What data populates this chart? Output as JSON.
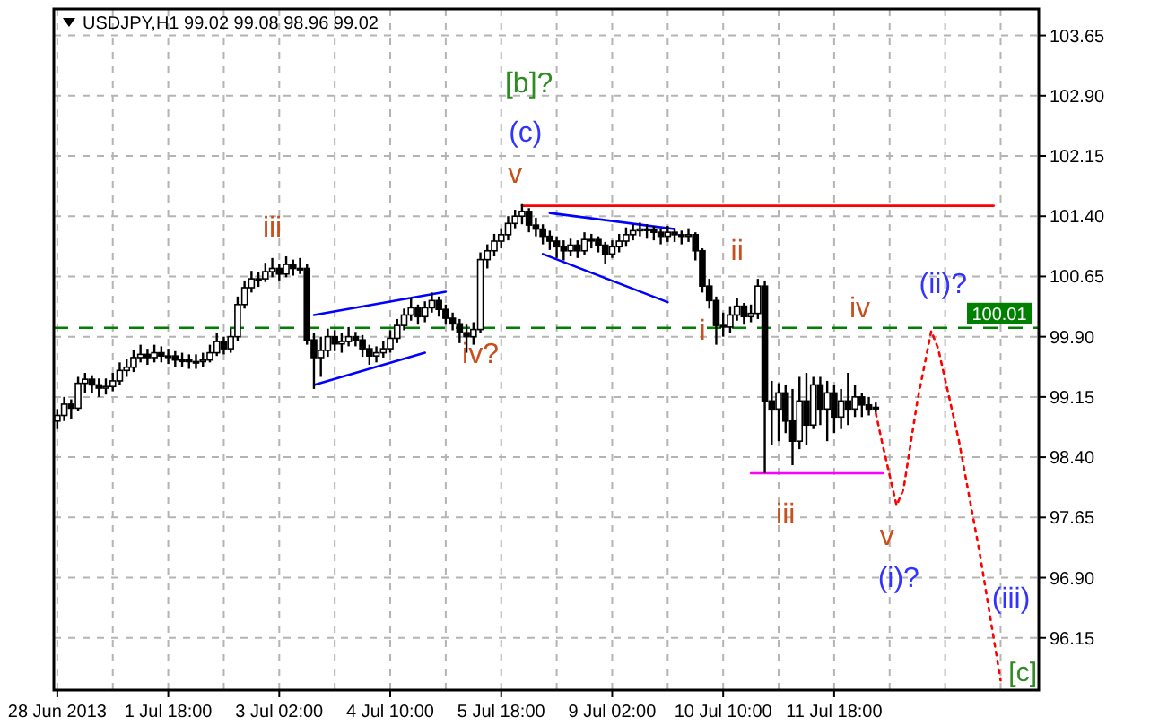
{
  "chart_data": {
    "type": "candlestick",
    "title": "USDJPY,H1  99.02 99.08 98.96 99.02",
    "categories": [
      "28 Jun 2013",
      null,
      null,
      null,
      null,
      null,
      null,
      null,
      null,
      null,
      null,
      null,
      null,
      null,
      null,
      null,
      "1 Jul 18:00",
      null,
      null,
      null,
      null,
      null,
      null,
      null,
      null,
      null,
      null,
      null,
      null,
      null,
      null,
      null,
      "3 Jul 02:00",
      null,
      null,
      null,
      null,
      null,
      null,
      null,
      null,
      null,
      null,
      null,
      null,
      null,
      null,
      null,
      "4 Jul 10:00",
      null,
      null,
      null,
      null,
      null,
      null,
      null,
      null,
      null,
      null,
      null,
      null,
      null,
      null,
      null,
      "5 Jul 18:00",
      null,
      null,
      null,
      null,
      null,
      null,
      null,
      null,
      null,
      null,
      null,
      null,
      null,
      null,
      null,
      "9 Jul 02:00",
      null,
      null,
      null,
      null,
      null,
      null,
      null,
      null,
      null,
      null,
      null,
      null,
      null,
      null,
      null,
      "10 Jul 10:00",
      null,
      null,
      null,
      null,
      null,
      null,
      null,
      null,
      null,
      null,
      null,
      null,
      null,
      null,
      null,
      "11 Jul 18:00",
      null,
      null,
      null,
      null,
      null,
      null,
      null,
      null,
      null,
      null,
      null,
      null,
      null,
      null,
      null,
      null,
      null,
      null,
      null,
      null,
      null,
      null,
      null,
      null,
      null,
      null,
      null,
      null,
      null
    ],
    "ohlc": [
      [
        98.85,
        99.0,
        98.75,
        98.92
      ],
      [
        98.92,
        99.15,
        98.85,
        99.06
      ],
      [
        99.06,
        99.12,
        98.88,
        99.01
      ],
      [
        99.01,
        99.4,
        98.98,
        99.32
      ],
      [
        99.32,
        99.45,
        99.2,
        99.37
      ],
      [
        99.37,
        99.42,
        99.2,
        99.3
      ],
      [
        99.3,
        99.38,
        99.15,
        99.26
      ],
      [
        99.26,
        99.38,
        99.18,
        99.28
      ],
      [
        99.28,
        99.45,
        99.22,
        99.35
      ],
      [
        99.35,
        99.58,
        99.3,
        99.48
      ],
      [
        99.48,
        99.62,
        99.4,
        99.52
      ],
      [
        99.52,
        99.74,
        99.46,
        99.64
      ],
      [
        99.64,
        99.8,
        99.58,
        99.68
      ],
      [
        99.68,
        99.75,
        99.55,
        99.64
      ],
      [
        99.64,
        99.8,
        99.58,
        99.7
      ],
      [
        99.7,
        99.78,
        99.58,
        99.66
      ],
      [
        99.66,
        99.75,
        99.56,
        99.66
      ],
      [
        99.66,
        99.72,
        99.52,
        99.61
      ],
      [
        99.61,
        99.7,
        99.52,
        99.61
      ],
      [
        99.61,
        99.68,
        99.5,
        99.59
      ],
      [
        99.59,
        99.68,
        99.5,
        99.59
      ],
      [
        99.59,
        99.7,
        99.52,
        99.61
      ],
      [
        99.61,
        99.8,
        99.58,
        99.7
      ],
      [
        99.7,
        99.95,
        99.66,
        99.84
      ],
      [
        99.84,
        99.9,
        99.68,
        99.75
      ],
      [
        99.75,
        100.0,
        99.7,
        99.9
      ],
      [
        99.9,
        100.4,
        99.85,
        100.3
      ],
      [
        100.3,
        100.6,
        100.25,
        100.51
      ],
      [
        100.51,
        100.72,
        100.45,
        100.62
      ],
      [
        100.62,
        100.7,
        100.52,
        100.62
      ],
      [
        100.62,
        100.82,
        100.58,
        100.71
      ],
      [
        100.71,
        100.88,
        100.64,
        100.75
      ],
      [
        100.75,
        100.8,
        100.6,
        100.68
      ],
      [
        100.68,
        100.9,
        100.64,
        100.8
      ],
      [
        100.8,
        100.86,
        100.66,
        100.75
      ],
      [
        100.75,
        100.88,
        100.68,
        100.75
      ],
      [
        100.75,
        100.8,
        99.8,
        99.86
      ],
      [
        99.86,
        99.95,
        99.25,
        99.64
      ],
      [
        99.64,
        99.9,
        99.4,
        99.73
      ],
      [
        99.73,
        100.0,
        99.65,
        99.9
      ],
      [
        99.9,
        99.98,
        99.72,
        99.81
      ],
      [
        99.81,
        99.95,
        99.7,
        99.84
      ],
      [
        99.84,
        100.02,
        99.78,
        99.9
      ],
      [
        99.9,
        99.96,
        99.78,
        99.86
      ],
      [
        99.86,
        99.92,
        99.65,
        99.75
      ],
      [
        99.75,
        99.8,
        99.55,
        99.66
      ],
      [
        99.66,
        99.78,
        99.58,
        99.7
      ],
      [
        99.7,
        99.85,
        99.64,
        99.75
      ],
      [
        99.75,
        99.98,
        99.7,
        99.88
      ],
      [
        99.88,
        100.12,
        99.82,
        100.04
      ],
      [
        100.04,
        100.25,
        99.98,
        100.17
      ],
      [
        100.17,
        100.38,
        100.1,
        100.26
      ],
      [
        100.26,
        100.3,
        100.05,
        100.15
      ],
      [
        100.15,
        100.34,
        100.08,
        100.26
      ],
      [
        100.26,
        100.45,
        100.2,
        100.35
      ],
      [
        100.35,
        100.4,
        100.15,
        100.24
      ],
      [
        100.24,
        100.3,
        100.05,
        100.13
      ],
      [
        100.13,
        100.2,
        99.98,
        100.06
      ],
      [
        100.06,
        100.12,
        99.82,
        99.95
      ],
      [
        99.95,
        100.05,
        99.7,
        99.9
      ],
      [
        99.9,
        100.08,
        99.8,
        99.99
      ],
      [
        99.99,
        100.95,
        99.95,
        100.86
      ],
      [
        100.86,
        101.05,
        100.75,
        100.97
      ],
      [
        100.97,
        101.18,
        100.9,
        101.09
      ],
      [
        101.09,
        101.25,
        101.0,
        101.17
      ],
      [
        101.17,
        101.4,
        101.1,
        101.31
      ],
      [
        101.31,
        101.48,
        101.25,
        101.4
      ],
      [
        101.4,
        101.55,
        101.3,
        101.46
      ],
      [
        101.46,
        101.5,
        101.2,
        101.29
      ],
      [
        101.29,
        101.38,
        101.15,
        101.24
      ],
      [
        101.24,
        101.3,
        101.05,
        101.15
      ],
      [
        101.15,
        101.22,
        100.98,
        101.09
      ],
      [
        101.09,
        101.15,
        100.88,
        101.02
      ],
      [
        101.02,
        101.1,
        100.85,
        100.97
      ],
      [
        100.97,
        101.12,
        100.9,
        101.04
      ],
      [
        101.04,
        101.1,
        100.88,
        100.97
      ],
      [
        100.97,
        101.2,
        100.92,
        101.11
      ],
      [
        101.11,
        101.18,
        101.0,
        101.11
      ],
      [
        101.11,
        101.15,
        100.95,
        101.04
      ],
      [
        101.04,
        101.08,
        100.8,
        100.93
      ],
      [
        100.93,
        101.1,
        100.88,
        101.02
      ],
      [
        101.02,
        101.18,
        100.95,
        101.09
      ],
      [
        101.09,
        101.26,
        101.02,
        101.17
      ],
      [
        101.17,
        101.3,
        101.1,
        101.22
      ],
      [
        101.22,
        101.32,
        101.15,
        101.24
      ],
      [
        101.24,
        101.3,
        101.12,
        101.24
      ],
      [
        101.24,
        101.28,
        101.1,
        101.2
      ],
      [
        101.2,
        101.25,
        101.05,
        101.15
      ],
      [
        101.15,
        101.28,
        101.08,
        101.2
      ],
      [
        101.2,
        101.25,
        101.08,
        101.17
      ],
      [
        101.17,
        101.22,
        101.05,
        101.15
      ],
      [
        101.15,
        101.25,
        101.08,
        101.17
      ],
      [
        101.17,
        101.2,
        100.85,
        100.97
      ],
      [
        100.97,
        101.0,
        100.45,
        100.53
      ],
      [
        100.53,
        100.62,
        100.25,
        100.35
      ],
      [
        100.35,
        100.4,
        99.8,
        100.04
      ],
      [
        100.04,
        100.2,
        99.9,
        100.02
      ],
      [
        100.02,
        100.28,
        99.95,
        100.17
      ],
      [
        100.17,
        100.38,
        100.1,
        100.28
      ],
      [
        100.28,
        100.32,
        100.05,
        100.15
      ],
      [
        100.15,
        100.3,
        100.08,
        100.19
      ],
      [
        100.19,
        100.62,
        100.12,
        100.53
      ],
      [
        100.53,
        100.6,
        98.2,
        99.1
      ],
      [
        99.1,
        99.35,
        98.55,
        99.0
      ],
      [
        99.0,
        99.32,
        98.6,
        99.2
      ],
      [
        99.2,
        99.3,
        98.7,
        98.85
      ],
      [
        98.85,
        99.25,
        98.3,
        98.6
      ],
      [
        98.6,
        99.4,
        98.5,
        99.1
      ],
      [
        99.1,
        99.45,
        98.55,
        98.8
      ],
      [
        98.8,
        99.4,
        98.75,
        99.3
      ],
      [
        99.3,
        99.4,
        98.8,
        99.0
      ],
      [
        99.0,
        99.35,
        98.6,
        99.2
      ],
      [
        99.2,
        99.3,
        98.7,
        98.9
      ],
      [
        98.9,
        99.25,
        98.75,
        99.1
      ],
      [
        99.1,
        99.45,
        98.8,
        99.0
      ],
      [
        99.0,
        99.3,
        98.9,
        99.15
      ],
      [
        99.15,
        99.2,
        98.9,
        99.05
      ],
      [
        99.05,
        99.15,
        98.92,
        99.0
      ],
      [
        99.02,
        99.08,
        98.96,
        99.02
      ],
      null,
      null,
      null,
      null,
      null,
      null,
      null,
      null,
      null,
      null,
      null,
      null,
      null,
      null,
      null,
      null,
      null,
      null,
      null,
      null,
      null,
      null,
      null
    ],
    "series": [
      {
        "type": "line",
        "color": "#0000ff",
        "values": [
          null,
          null,
          null,
          null,
          null,
          null,
          null,
          null,
          null,
          null,
          null,
          null,
          null,
          null,
          null,
          null,
          null,
          null,
          null,
          null,
          null,
          null,
          null,
          null,
          null,
          null,
          null,
          null,
          null,
          null,
          null,
          null,
          null,
          null,
          null,
          null,
          null,
          99.3,
          null,
          null,
          null,
          null,
          null,
          null,
          null,
          null,
          null,
          null,
          null,
          null,
          null,
          null,
          null,
          99.7,
          null,
          null,
          null,
          null,
          null,
          null,
          null,
          null,
          null,
          null,
          null,
          null,
          null,
          null,
          null,
          null,
          null,
          null,
          null,
          null,
          null,
          null,
          null,
          null,
          null,
          null,
          null,
          null,
          null,
          null,
          null,
          null,
          null,
          null,
          null,
          null,
          null,
          null,
          null,
          null,
          null,
          null,
          null,
          null,
          null,
          null,
          null,
          null,
          null,
          null,
          null,
          null,
          null,
          null,
          null,
          null,
          null,
          null,
          null,
          null,
          null,
          null,
          null,
          null,
          null,
          null,
          null,
          null,
          null,
          null,
          null,
          null,
          null,
          null,
          null,
          null,
          null,
          null,
          null,
          null,
          null,
          null,
          null,
          null,
          null,
          null,
          null,
          null
        ]
      },
      {
        "type": "line",
        "color": "#0000ff",
        "values": [
          null,
          null,
          null,
          null,
          null,
          null,
          null,
          null,
          null,
          null,
          null,
          null,
          null,
          null,
          null,
          null,
          null,
          null,
          null,
          null,
          null,
          null,
          null,
          null,
          null,
          null,
          null,
          null,
          null,
          null,
          null,
          null,
          null,
          null,
          null,
          null,
          null,
          100.17,
          null,
          null,
          null,
          null,
          null,
          null,
          null,
          null,
          null,
          null,
          null,
          null,
          null,
          null,
          null,
          null,
          null,
          null,
          100.46,
          null,
          null,
          null,
          null,
          null,
          null,
          null,
          null,
          null,
          null,
          null,
          null,
          null,
          null,
          null,
          null,
          null,
          null,
          null,
          null,
          null,
          null,
          null,
          null,
          null,
          null,
          null,
          null,
          null,
          null,
          null,
          null,
          null,
          null,
          null,
          null,
          null,
          null,
          null,
          null,
          null,
          null,
          null,
          null,
          null,
          null,
          null,
          null,
          null,
          null,
          null,
          null,
          null,
          null,
          null,
          null,
          null,
          null,
          null,
          null,
          null,
          null,
          null,
          null,
          null,
          null,
          null,
          null,
          null,
          null,
          null,
          null,
          null,
          null,
          null,
          null,
          null,
          null,
          null,
          null,
          null,
          null,
          null,
          null,
          null
        ]
      },
      {
        "type": "line",
        "color": "#0000ff",
        "values": [
          null,
          null,
          null,
          null,
          null,
          null,
          null,
          null,
          null,
          null,
          null,
          null,
          null,
          null,
          null,
          null,
          null,
          null,
          null,
          null,
          null,
          null,
          null,
          null,
          null,
          null,
          null,
          null,
          null,
          null,
          null,
          null,
          null,
          null,
          null,
          null,
          null,
          null,
          null,
          null,
          null,
          null,
          null,
          null,
          null,
          null,
          null,
          null,
          null,
          null,
          null,
          null,
          null,
          null,
          null,
          null,
          null,
          null,
          null,
          null,
          null,
          null,
          null,
          null,
          null,
          null,
          null,
          null,
          null,
          null,
          null,
          101.44,
          null,
          null,
          null,
          null,
          null,
          null,
          null,
          null,
          null,
          null,
          null,
          null,
          null,
          null,
          null,
          null,
          null,
          101.24,
          null,
          null,
          null,
          null,
          null,
          null,
          null,
          null,
          null,
          null,
          null,
          null,
          null,
          null,
          null,
          null,
          null,
          null,
          null,
          null,
          null,
          null,
          null,
          null,
          null,
          null,
          null,
          null,
          null,
          null,
          null,
          null,
          null,
          null,
          null,
          null,
          null,
          null,
          null,
          null,
          null,
          null,
          null,
          null,
          null,
          null,
          null,
          null,
          null,
          null,
          null,
          null
        ]
      },
      {
        "type": "line",
        "color": "#0000ff",
        "values": [
          null,
          null,
          null,
          null,
          null,
          null,
          null,
          null,
          null,
          null,
          null,
          null,
          null,
          null,
          null,
          null,
          null,
          null,
          null,
          null,
          null,
          null,
          null,
          null,
          null,
          null,
          null,
          null,
          null,
          null,
          null,
          null,
          null,
          null,
          null,
          null,
          null,
          null,
          null,
          null,
          null,
          null,
          null,
          null,
          null,
          null,
          null,
          null,
          null,
          null,
          null,
          null,
          null,
          null,
          null,
          null,
          null,
          null,
          null,
          null,
          null,
          null,
          null,
          null,
          null,
          null,
          null,
          null,
          null,
          null,
          100.93,
          null,
          null,
          null,
          null,
          null,
          null,
          null,
          null,
          null,
          null,
          null,
          null,
          null,
          null,
          null,
          null,
          null,
          100.33,
          null,
          null,
          null,
          null,
          null,
          null,
          null,
          null,
          null,
          null,
          null,
          null,
          null,
          null,
          null,
          null,
          null,
          null,
          null,
          null,
          null,
          null,
          null,
          null,
          null,
          null,
          null,
          null,
          null,
          null,
          null,
          null,
          null,
          null,
          null,
          null,
          null,
          null,
          null,
          null,
          null,
          null,
          null,
          null,
          null,
          null,
          null,
          null,
          null,
          null,
          null,
          null,
          null
        ]
      },
      {
        "type": "line",
        "color": "#ff0000",
        "values": [
          null,
          null,
          null,
          null,
          null,
          null,
          null,
          null,
          null,
          null,
          null,
          null,
          null,
          null,
          null,
          null,
          null,
          null,
          null,
          null,
          null,
          null,
          null,
          null,
          null,
          null,
          null,
          null,
          null,
          null,
          null,
          null,
          null,
          null,
          null,
          null,
          null,
          null,
          null,
          null,
          null,
          null,
          null,
          null,
          null,
          null,
          null,
          null,
          null,
          null,
          null,
          null,
          null,
          null,
          null,
          null,
          null,
          null,
          null,
          null,
          null,
          null,
          null,
          null,
          null,
          null,
          null,
          101.53,
          null,
          null,
          null,
          null,
          null,
          null,
          null,
          null,
          null,
          null,
          null,
          null,
          null,
          null,
          null,
          null,
          null,
          null,
          null,
          null,
          null,
          null,
          null,
          null,
          null,
          null,
          null,
          null,
          null,
          null,
          null,
          null,
          null,
          null,
          null,
          null,
          null,
          null,
          null,
          null,
          null,
          null,
          null,
          null,
          null,
          null,
          null,
          null,
          null,
          null,
          null,
          null,
          null,
          null,
          null,
          null,
          null,
          null,
          null,
          null,
          null,
          null,
          null,
          null,
          null,
          null,
          null,
          101.53,
          null,
          null,
          null,
          null,
          null,
          null
        ]
      },
      {
        "type": "line",
        "color": "#ff00ff",
        "values": [
          null,
          null,
          null,
          null,
          null,
          null,
          null,
          null,
          null,
          null,
          null,
          null,
          null,
          null,
          null,
          null,
          null,
          null,
          null,
          null,
          null,
          null,
          null,
          null,
          null,
          null,
          null,
          null,
          null,
          null,
          null,
          null,
          null,
          null,
          null,
          null,
          null,
          null,
          null,
          null,
          null,
          null,
          null,
          null,
          null,
          null,
          null,
          null,
          null,
          null,
          null,
          null,
          null,
          null,
          null,
          null,
          null,
          null,
          null,
          null,
          null,
          null,
          null,
          null,
          null,
          null,
          null,
          null,
          null,
          null,
          null,
          null,
          null,
          null,
          null,
          null,
          null,
          null,
          null,
          null,
          null,
          null,
          null,
          null,
          null,
          null,
          null,
          null,
          null,
          null,
          null,
          null,
          null,
          null,
          null,
          null,
          null,
          null,
          null,
          null,
          98.2,
          null,
          null,
          null,
          null,
          null,
          null,
          null,
          null,
          null,
          null,
          null,
          null,
          null,
          null,
          null,
          null,
          null,
          null,
          98.2,
          null,
          null,
          null,
          null,
          null,
          null,
          null,
          null,
          null,
          null,
          null,
          null,
          null,
          null,
          null,
          null,
          null,
          null,
          null,
          null,
          null,
          null
        ]
      },
      {
        "type": "line",
        "color": "#ff0000",
        "line_style": "dotted",
        "values": [
          null,
          null,
          null,
          null,
          null,
          null,
          null,
          null,
          null,
          null,
          null,
          null,
          null,
          null,
          null,
          null,
          null,
          null,
          null,
          null,
          null,
          null,
          null,
          null,
          null,
          null,
          null,
          null,
          null,
          null,
          null,
          null,
          null,
          null,
          null,
          null,
          null,
          null,
          null,
          null,
          null,
          null,
          null,
          null,
          null,
          null,
          null,
          null,
          null,
          null,
          null,
          null,
          null,
          null,
          null,
          null,
          null,
          null,
          null,
          null,
          null,
          null,
          null,
          null,
          null,
          null,
          null,
          null,
          null,
          null,
          null,
          null,
          null,
          null,
          null,
          null,
          null,
          null,
          null,
          null,
          null,
          null,
          null,
          null,
          null,
          null,
          null,
          null,
          null,
          null,
          null,
          null,
          null,
          null,
          null,
          null,
          null,
          null,
          null,
          null,
          null,
          null,
          null,
          null,
          null,
          null,
          null,
          null,
          null,
          null,
          null,
          null,
          null,
          null,
          null,
          null,
          null,
          null,
          98.95,
          98.55,
          null,
          97.8,
          98.0,
          null,
          99.1,
          null,
          99.97,
          99.75,
          null,
          null,
          98.6,
          null,
          null,
          97.2,
          null,
          null,
          95.62,
          null,
          null,
          null,
          null,
          null
        ]
      }
    ],
    "ref_lines": [
      {
        "axis": "y",
        "value": 100.01,
        "label": "100.01",
        "color": "#008000",
        "line_style": "dashed"
      }
    ],
    "annotations": [
      "iii",
      "iv?",
      "v",
      "(c)",
      "[b]?",
      "ii",
      "i",
      "iv",
      {
        "text": "iii",
        "y": 98.2
      },
      "v",
      "(i)?",
      "(ii)?",
      "(iii)",
      "[c]"
    ],
    "ylim": [
      95.5,
      103.98
    ],
    "yticks": [
      96.15,
      {
        "value": 96.9,
        "label": "96.90"
      },
      97.65,
      {
        "value": 98.4,
        "label": "98.40"
      },
      99.15,
      {
        "value": 99.9,
        "label": "99.90"
      },
      100.65,
      {
        "value": 101.4,
        "label": "101.40"
      },
      102.15,
      {
        "value": 102.9,
        "label": "102.90"
      },
      103.65
    ],
    "grid": true
  }
}
